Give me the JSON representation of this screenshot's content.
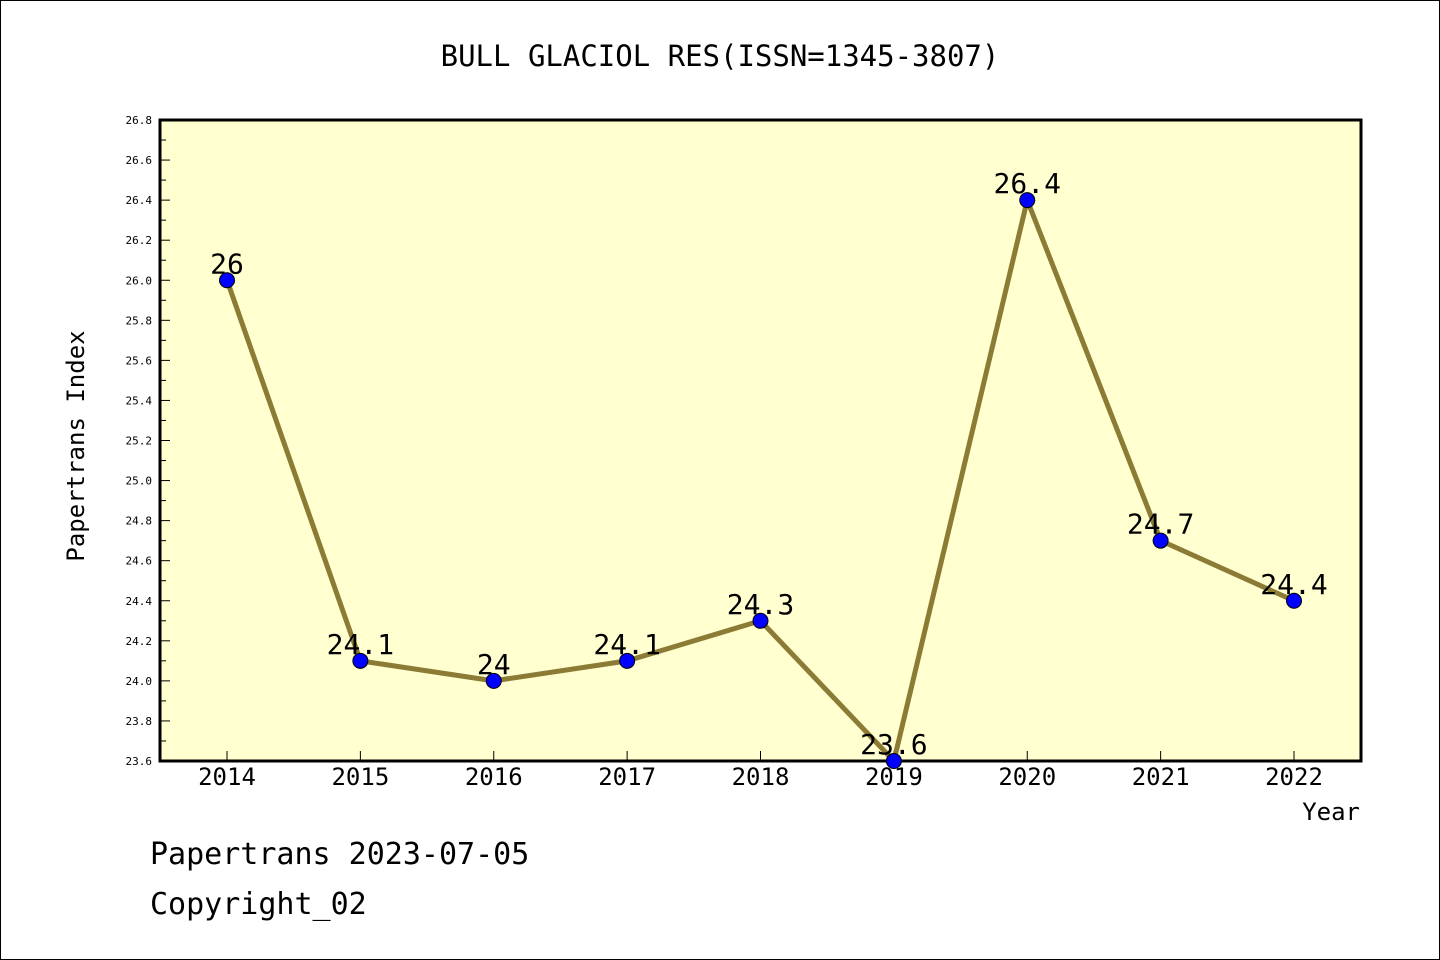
{
  "chart_data": {
    "type": "line",
    "title": "BULL GLACIOL RES(ISSN=1345-3807)",
    "xlabel": "Year",
    "ylabel": "Papertrans Index",
    "categories": [
      "2014",
      "2015",
      "2016",
      "2017",
      "2018",
      "2019",
      "2020",
      "2021",
      "2022"
    ],
    "series": [
      {
        "values": [
          26,
          24.1,
          24,
          24.1,
          24.3,
          23.6,
          26.4,
          24.7,
          24.4
        ],
        "labels": [
          "26",
          "24.1",
          "24",
          "24.1",
          "24.3",
          "23.6",
          "26.4",
          "24.7",
          "24.4"
        ]
      }
    ],
    "ylim": [
      23.6,
      26.8
    ],
    "yticks": [
      "23.6",
      "23.8",
      "24.0",
      "24.2",
      "24.4",
      "24.6",
      "24.8",
      "25.0",
      "25.2",
      "25.4",
      "25.6",
      "25.8",
      "26.0",
      "26.2",
      "26.4",
      "26.6",
      "26.8"
    ],
    "grid": false,
    "legend": "none",
    "colors": {
      "plot_background": "#ffffd0",
      "line": "#8b7b35",
      "marker": "#0000ff",
      "axis": "#000000"
    }
  },
  "footer": {
    "line1": "Papertrans 2023-07-05",
    "line2": "Copyright_02"
  }
}
